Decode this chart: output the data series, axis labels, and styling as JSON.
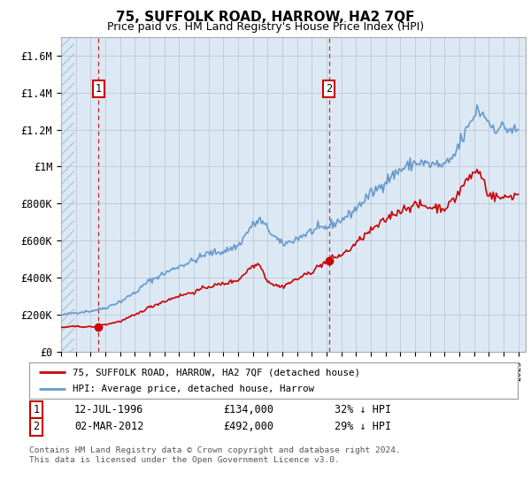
{
  "title": "75, SUFFOLK ROAD, HARROW, HA2 7QF",
  "subtitle": "Price paid vs. HM Land Registry's House Price Index (HPI)",
  "plot_bg_color": "#dce9f5",
  "hatch_color": "#b0c8df",
  "grid_color": "#b0b8c8",
  "ylim": [
    0,
    1700000
  ],
  "yticks": [
    0,
    200000,
    400000,
    600000,
    800000,
    1000000,
    1200000,
    1400000,
    1600000
  ],
  "ytick_labels": [
    "£0",
    "£200K",
    "£400K",
    "£600K",
    "£800K",
    "£1M",
    "£1.2M",
    "£1.4M",
    "£1.6M"
  ],
  "xlim_start": 1994.0,
  "xlim_end": 2025.5,
  "sale1_x": 1996.54,
  "sale1_y": 134000,
  "sale2_x": 2012.17,
  "sale2_y": 492000,
  "legend_line1": "75, SUFFOLK ROAD, HARROW, HA2 7QF (detached house)",
  "legend_line2": "HPI: Average price, detached house, Harrow",
  "footer": "Contains HM Land Registry data © Crown copyright and database right 2024.\nThis data is licensed under the Open Government Licence v3.0.",
  "hpi_color": "#6699cc",
  "sale_color": "#cc0000",
  "hpi_linewidth": 1.2,
  "sale_linewidth": 1.2
}
